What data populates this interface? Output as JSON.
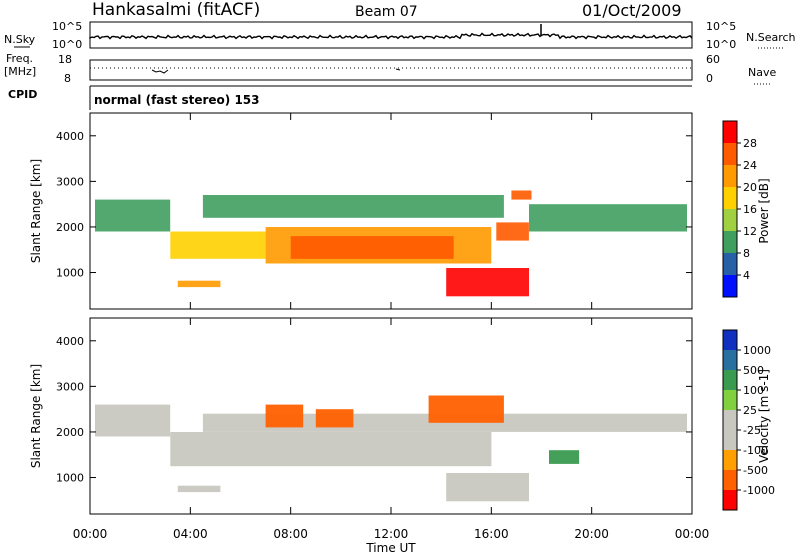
{
  "header": {
    "station": "Hankasalmi (fitACF)",
    "beam": "Beam 07",
    "date": "01/Oct/2009"
  },
  "noise_panel": {
    "left_label": "N.Sky",
    "right_label": "N.Search",
    "left_ticks": [
      "10^5",
      "10^0"
    ],
    "right_ticks": [
      "10^5",
      "10^0"
    ]
  },
  "freq_panel": {
    "label_line1": "Freq.",
    "label_line2": "[MHz]",
    "left_ticks": [
      "18",
      "8"
    ],
    "right_ticks": [
      "60",
      "0"
    ],
    "right_label": "Nave"
  },
  "cpid_panel": {
    "label": "CPID",
    "mode_text": "normal (fast stereo) 153"
  },
  "power_panel": {
    "ylabel": "Slant Range [km]",
    "yticks": [
      "4000",
      "3000",
      "2000",
      "1000"
    ],
    "colorbar_label": "Power [dB]",
    "colorbar_ticks": [
      "28",
      "24",
      "20",
      "16",
      "12",
      "8",
      "4"
    ],
    "colorbar_colors": [
      "#ff0000",
      "#ff5a00",
      "#ff9a00",
      "#ffd000",
      "#a0d040",
      "#3f9f5f",
      "#2860a8",
      "#0010ff"
    ]
  },
  "velocity_panel": {
    "ylabel": "Slant Range [km]",
    "yticks": [
      "4000",
      "3000",
      "2000",
      "1000"
    ],
    "colorbar_label": "Velocity [m s-1]",
    "colorbar_ticks": [
      "1000",
      "500",
      "100",
      "25",
      "-25",
      "-100",
      "-500",
      "-1000"
    ],
    "colorbar_colors": [
      "#1030c0",
      "#2870a0",
      "#3a9a50",
      "#80d040",
      "#c8c8c0",
      "#c8c8c0",
      "#ffa000",
      "#ff6000",
      "#ff0000"
    ]
  },
  "time_axis": {
    "label": "Time UT",
    "ticks": [
      "00:00",
      "04:00",
      "08:00",
      "12:00",
      "16:00",
      "20:00",
      "00:00"
    ]
  },
  "chart_data": {
    "type": "heatmap",
    "x_range_hours": [
      0,
      24
    ],
    "y_range_km": [
      200,
      4500
    ],
    "power_regions": [
      {
        "t0": 0.2,
        "t1": 3.2,
        "r0": 1900,
        "r1": 2600,
        "value_db": 10
      },
      {
        "t0": 3.2,
        "t1": 7.0,
        "r0": 1300,
        "r1": 1900,
        "value_db": 16
      },
      {
        "t0": 4.5,
        "t1": 16.5,
        "r0": 2200,
        "r1": 2700,
        "value_db": 8
      },
      {
        "t0": 7.0,
        "t1": 16.0,
        "r0": 1200,
        "r1": 2000,
        "value_db": 20
      },
      {
        "t0": 8.0,
        "t1": 14.5,
        "r0": 1300,
        "r1": 1800,
        "value_db": 26
      },
      {
        "t0": 3.5,
        "t1": 5.2,
        "r0": 680,
        "r1": 820,
        "value_db": 20
      },
      {
        "t0": 14.2,
        "t1": 17.5,
        "r0": 480,
        "r1": 1100,
        "value_db": 28
      },
      {
        "t0": 17.5,
        "t1": 23.8,
        "r0": 1900,
        "r1": 2500,
        "value_db": 8
      },
      {
        "t0": 16.8,
        "t1": 17.6,
        "r0": 2600,
        "r1": 2800,
        "value_db": 24
      },
      {
        "t0": 16.2,
        "t1": 17.5,
        "r0": 1700,
        "r1": 2100,
        "value_db": 24
      }
    ],
    "velocity_regions": [
      {
        "t0": 0.2,
        "t1": 3.2,
        "r0": 1900,
        "r1": 2600,
        "value_ms": 0
      },
      {
        "t0": 3.2,
        "t1": 16.0,
        "r0": 1250,
        "r1": 2000,
        "value_ms": 0
      },
      {
        "t0": 4.5,
        "t1": 23.8,
        "r0": 2000,
        "r1": 2400,
        "value_ms": 0
      },
      {
        "t0": 3.5,
        "t1": 5.2,
        "r0": 680,
        "r1": 820,
        "value_ms": 0
      },
      {
        "t0": 14.2,
        "t1": 17.5,
        "r0": 480,
        "r1": 1100,
        "value_ms": 0
      },
      {
        "t0": 7.0,
        "t1": 8.5,
        "r0": 2100,
        "r1": 2600,
        "value_ms": -300
      },
      {
        "t0": 9.0,
        "t1": 10.5,
        "r0": 2100,
        "r1": 2500,
        "value_ms": -300
      },
      {
        "t0": 13.5,
        "t1": 16.5,
        "r0": 2200,
        "r1": 2800,
        "value_ms": -300
      },
      {
        "t0": 18.3,
        "t1": 19.5,
        "r0": 1300,
        "r1": 1600,
        "value_ms": 200
      }
    ]
  }
}
